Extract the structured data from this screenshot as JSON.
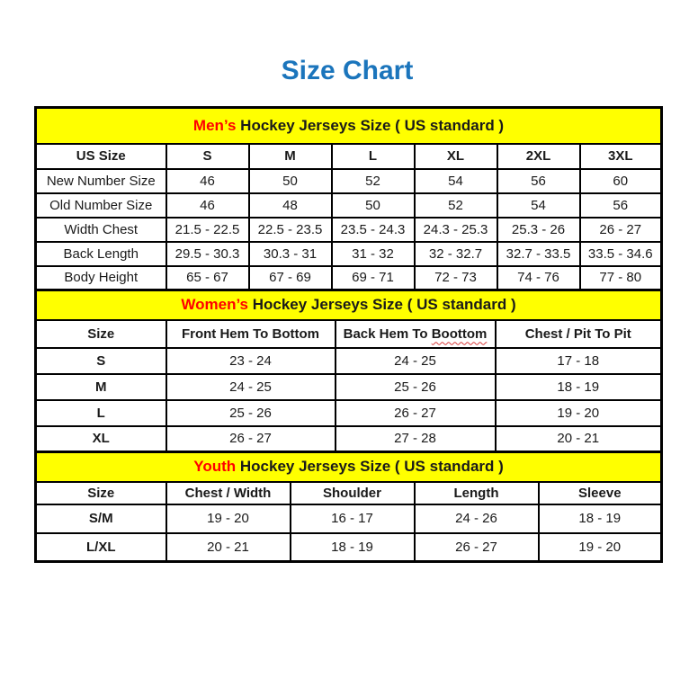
{
  "title": "Size Chart",
  "colors": {
    "title_blue": "#1b75bc",
    "banner_yellow": "#ffff00",
    "accent_red": "#ff0000",
    "border_black": "#000000"
  },
  "tables": [
    {
      "id": "mens",
      "bold_labels": false,
      "banner": {
        "accent": "Men’s",
        "rest": " Hockey Jerseys Size ( US standard )"
      },
      "headers": [
        {
          "label": "US Size"
        },
        {
          "label": "S"
        },
        {
          "label": "M"
        },
        {
          "label": "L"
        },
        {
          "label": "XL"
        },
        {
          "label": "2XL"
        },
        {
          "label": "3XL"
        }
      ],
      "rows": [
        {
          "label": "New Number Size",
          "values": [
            "46",
            "50",
            "52",
            "54",
            "56",
            "60"
          ]
        },
        {
          "label": "Old Number Size",
          "values": [
            "46",
            "48",
            "50",
            "52",
            "54",
            "56"
          ]
        },
        {
          "label": "Width Chest",
          "values": [
            "21.5 - 22.5",
            "22.5 - 23.5",
            "23.5 - 24.3",
            "24.3 - 25.3",
            "25.3 - 26",
            "26 - 27"
          ]
        },
        {
          "label": "Back Length",
          "values": [
            "29.5 - 30.3",
            "30.3 - 31",
            "31 - 32",
            "32 - 32.7",
            "32.7 - 33.5",
            "33.5 - 34.6"
          ]
        },
        {
          "label": "Body Height",
          "values": [
            "65 - 67",
            "67 - 69",
            "69 - 71",
            "72 - 73",
            "74 - 76",
            "77 - 80"
          ]
        }
      ]
    },
    {
      "id": "womens",
      "bold_labels": true,
      "banner": {
        "accent": "Women’s",
        "rest": " Hockey Jerseys Size ( US standard )"
      },
      "headers": [
        {
          "label": "Size"
        },
        {
          "label": "Front Hem To Bottom"
        },
        {
          "label": "Back Hem To ",
          "squiggle": "Boottom"
        },
        {
          "label": "Chest / Pit To Pit"
        }
      ],
      "rows": [
        {
          "label": "S",
          "values": [
            "23 - 24",
            "24 - 25",
            "17 - 18"
          ]
        },
        {
          "label": "M",
          "values": [
            "24 - 25",
            "25 - 26",
            "18 - 19"
          ]
        },
        {
          "label": "L",
          "values": [
            "25 - 26",
            "26 - 27",
            "19 - 20"
          ]
        },
        {
          "label": "XL",
          "values": [
            "26 - 27",
            "27 - 28",
            "20 - 21"
          ]
        }
      ]
    },
    {
      "id": "youth",
      "bold_labels": true,
      "banner": {
        "accent": "Youth",
        "rest": " Hockey Jerseys Size ( US standard )"
      },
      "headers": [
        {
          "label": "Size"
        },
        {
          "label": "Chest / Width"
        },
        {
          "label": "Shoulder"
        },
        {
          "label": "Length"
        },
        {
          "label": "Sleeve"
        }
      ],
      "rows": [
        {
          "label": "S/M",
          "values": [
            "19 - 20",
            "16 - 17",
            "24 - 26",
            "18 - 19"
          ]
        },
        {
          "label": "L/XL",
          "values": [
            "20 - 21",
            "18 - 19",
            "26 - 27",
            "19 - 20"
          ]
        }
      ]
    }
  ]
}
